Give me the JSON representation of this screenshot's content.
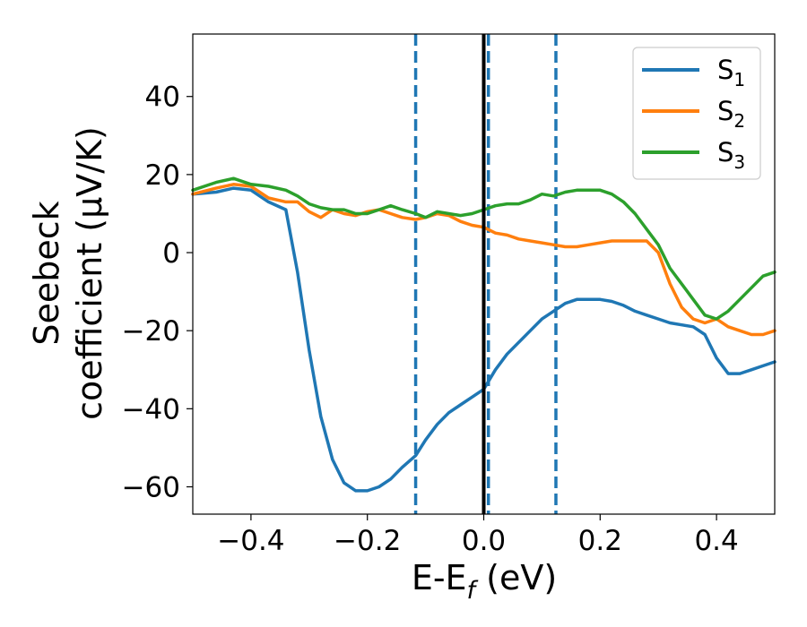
{
  "chart_data": {
    "type": "line",
    "xlabel": "E-E",
    "xlabel_subscript": "f",
    "xlabel_unit": " (eV)",
    "ylabel_line1": "Seebeck",
    "ylabel_line2": "coefficient  (μV/K)",
    "xlim": [
      -0.5,
      0.5
    ],
    "ylim": [
      -67,
      56
    ],
    "xticks": [
      -0.4,
      -0.2,
      0.0,
      0.2,
      0.4
    ],
    "xtick_labels": [
      "−0.4",
      "−0.2",
      "0.0",
      "0.2",
      "0.4"
    ],
    "yticks": [
      40,
      20,
      0,
      -20,
      -40,
      -60
    ],
    "ytick_labels": [
      "40",
      "20",
      "0",
      "−20",
      "−40",
      "−60"
    ],
    "grid": false,
    "legend_position": "top-right",
    "vertical_lines": [
      {
        "x": -0.117,
        "style": "dashed",
        "color": "#1f77b4"
      },
      {
        "x": 0.0,
        "style": "solid",
        "color": "#000000"
      },
      {
        "x": 0.008,
        "style": "dashed",
        "color": "#1f77b4"
      },
      {
        "x": 0.124,
        "style": "dashed",
        "color": "#1f77b4"
      }
    ],
    "x": [
      -0.5,
      -0.46,
      -0.43,
      -0.4,
      -0.37,
      -0.34,
      -0.32,
      -0.3,
      -0.28,
      -0.26,
      -0.24,
      -0.22,
      -0.2,
      -0.18,
      -0.16,
      -0.14,
      -0.117,
      -0.1,
      -0.08,
      -0.06,
      -0.04,
      -0.02,
      0.0,
      0.02,
      0.04,
      0.06,
      0.08,
      0.1,
      0.12,
      0.14,
      0.16,
      0.18,
      0.2,
      0.22,
      0.24,
      0.26,
      0.28,
      0.3,
      0.32,
      0.34,
      0.36,
      0.38,
      0.4,
      0.42,
      0.44,
      0.46,
      0.48,
      0.5
    ],
    "series": [
      {
        "name": "S",
        "name_subscript": "1",
        "color": "#1f77b4",
        "values": [
          15,
          15.5,
          16.5,
          16,
          13,
          11,
          -5,
          -25,
          -42,
          -53,
          -59,
          -61,
          -61,
          -60,
          -58,
          -55,
          -52,
          -48,
          -44,
          -41,
          -39,
          -37,
          -35,
          -30,
          -26,
          -23,
          -20,
          -17,
          -15,
          -13,
          -12,
          -12,
          -12,
          -12.5,
          -13.5,
          -15,
          -16,
          -17,
          -18,
          -18.5,
          -19,
          -21,
          -27,
          -31,
          -31,
          -30,
          -29,
          -28
        ]
      },
      {
        "name": "S",
        "name_subscript": "2",
        "color": "#ff7f0e",
        "values": [
          15,
          16.5,
          17.5,
          17,
          14,
          13,
          13,
          10.5,
          9,
          11,
          10,
          9.5,
          10.5,
          11,
          10,
          9,
          8.5,
          9,
          10,
          9.5,
          8,
          7,
          6.5,
          5,
          4.5,
          3.5,
          3,
          2.5,
          2,
          1.5,
          1.5,
          2,
          2.5,
          3,
          3,
          3,
          3,
          0,
          -8,
          -14,
          -17,
          -18,
          -17,
          -19,
          -20,
          -21,
          -21,
          -20
        ]
      },
      {
        "name": "S",
        "name_subscript": "3",
        "color": "#2ca02c",
        "values": [
          16,
          18,
          19,
          17.5,
          17,
          16,
          14.5,
          12.5,
          11.5,
          11,
          11,
          10,
          10,
          11,
          12,
          11,
          10,
          9,
          10.5,
          10,
          9.5,
          10,
          11,
          12,
          12.5,
          12.5,
          13.5,
          15,
          14.5,
          15.5,
          16,
          16,
          16,
          15,
          13,
          10,
          6,
          2,
          -4,
          -8,
          -12,
          -16,
          -17,
          -15,
          -12,
          -9,
          -6,
          -5
        ]
      }
    ]
  }
}
